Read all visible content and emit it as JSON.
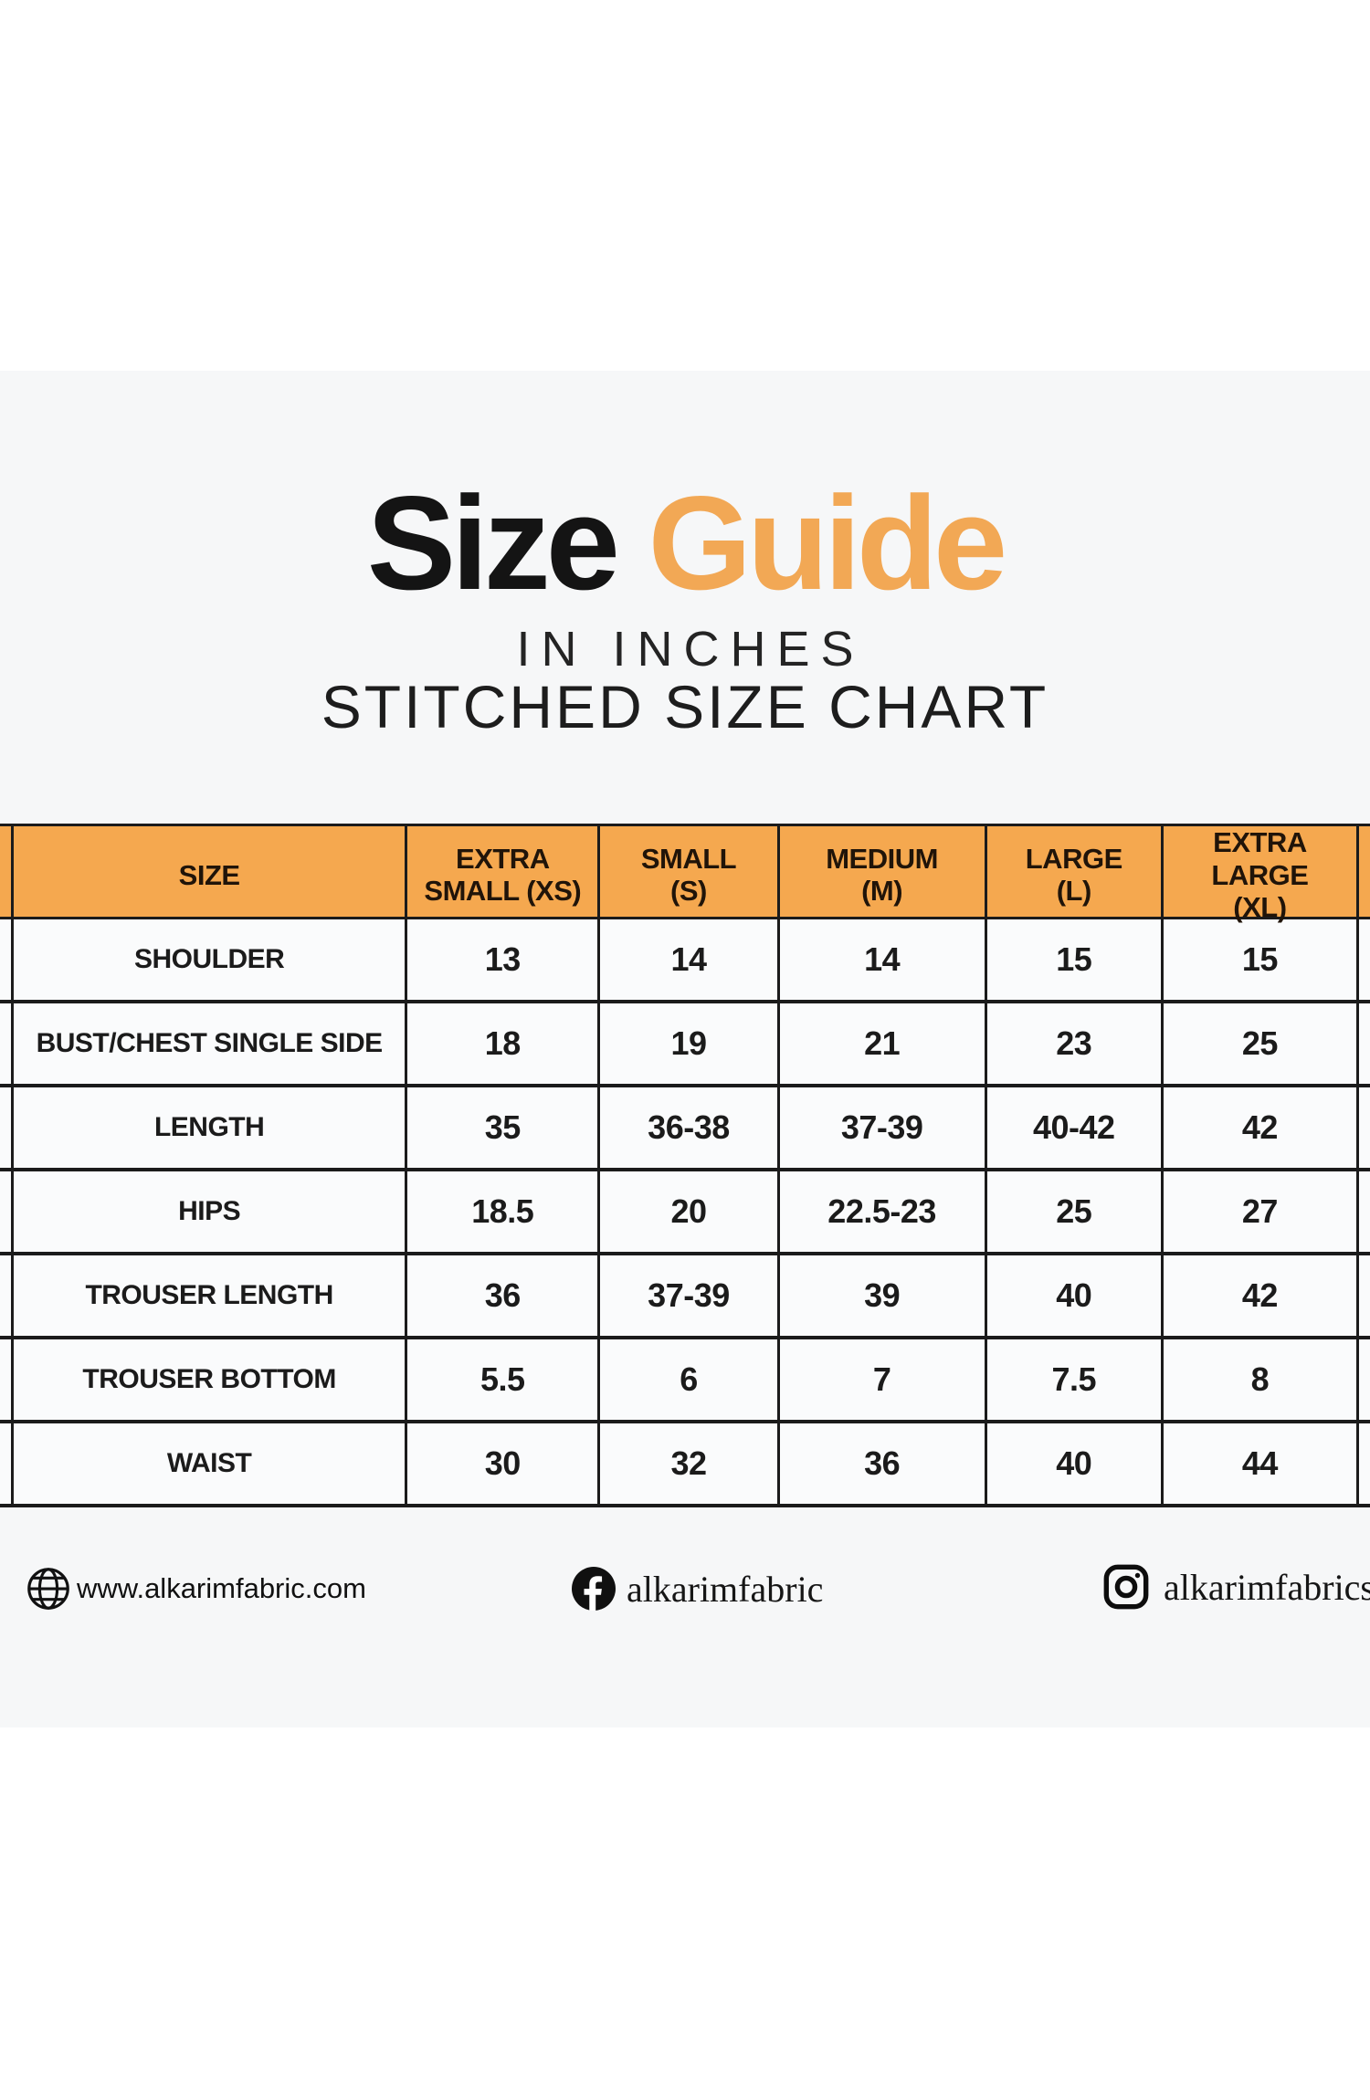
{
  "header": {
    "title_primary": "Size",
    "title_accent": "Guide",
    "subtitle_line1": "IN INCHES",
    "subtitle_line2": "STITCHED SIZE CHART"
  },
  "colors": {
    "accent_orange": "#F5A84F",
    "title_orange": "#F2A855",
    "border_black": "#1B1B1B",
    "band_background": "#F6F7F8"
  },
  "chart_data": {
    "type": "table",
    "title": "Size Guide",
    "subtitle": [
      "IN INCHES",
      "STITCHED SIZE CHART"
    ],
    "columns": [
      "SIZE",
      "EXTRA SMALL (XS)",
      "SMALL (S)",
      "MEDIUM (M)",
      "LARGE (L)",
      "EXTRA LARGE (XL)"
    ],
    "columns_2line": [
      {
        "line1": "SIZE",
        "line2": ""
      },
      {
        "line1": "EXTRA",
        "line2": "SMALL (XS)"
      },
      {
        "line1": "SMALL",
        "line2": "(S)"
      },
      {
        "line1": "MEDIUM",
        "line2": "(M)"
      },
      {
        "line1": "LARGE",
        "line2": "(L)"
      },
      {
        "line1": "EXTRA LARGE",
        "line2": "(XL)"
      }
    ],
    "rows": [
      {
        "label": "SHOULDER",
        "values": [
          "13",
          "14",
          "14",
          "15",
          "15"
        ]
      },
      {
        "label": "BUST/CHEST SINGLE SIDE",
        "values": [
          "18",
          "19",
          "21",
          "23",
          "25"
        ]
      },
      {
        "label": "LENGTH",
        "values": [
          "35",
          "36-38",
          "37-39",
          "40-42",
          "42"
        ]
      },
      {
        "label": "HIPS",
        "values": [
          "18.5",
          "20",
          "22.5-23",
          "25",
          "27"
        ]
      },
      {
        "label": "TROUSER LENGTH",
        "values": [
          "36",
          "37-39",
          "39",
          "40",
          "42"
        ]
      },
      {
        "label": "TROUSER BOTTOM",
        "values": [
          "5.5",
          "6",
          "7",
          "7.5",
          "8"
        ]
      },
      {
        "label": "WAIST",
        "values": [
          "30",
          "32",
          "36",
          "40",
          "44"
        ]
      }
    ]
  },
  "footer": {
    "website": {
      "icon": "globe-icon",
      "label": "www.alkarimfabric.com"
    },
    "facebook": {
      "icon": "facebook-icon",
      "label": "alkarimfabric"
    },
    "instagram": {
      "icon": "instagram-icon",
      "label": "alkarimfabrics"
    }
  }
}
